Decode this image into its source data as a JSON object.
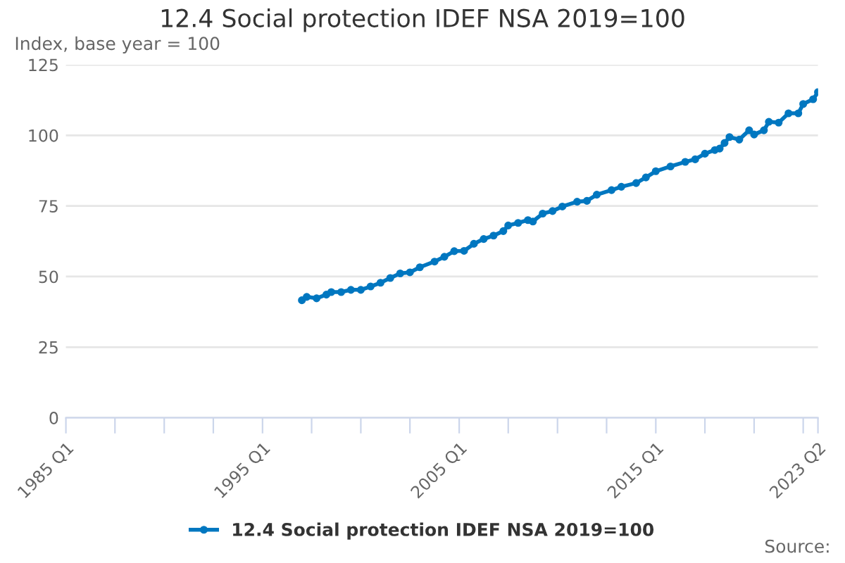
{
  "chart_data": {
    "type": "line",
    "title": "12.4 Social protection IDEF NSA 2019=100",
    "ylabel": "Index, base year = 100",
    "annotations": [
      "Source:"
    ],
    "series": [
      {
        "name": "12.4 Social protection IDEF NSA 2019=100",
        "color": "#0077c0",
        "x": [
          "1997-01",
          "1997-04",
          "1997-10",
          "1998-04",
          "1998-07",
          "1999-01",
          "1999-07",
          "2000-01",
          "2000-07",
          "2001-01",
          "2001-07",
          "2002-01",
          "2002-07",
          "2003-01",
          "2003-10",
          "2004-04",
          "2004-10",
          "2005-04",
          "2005-10",
          "2006-04",
          "2006-10",
          "2007-04",
          "2007-07",
          "2008-01",
          "2008-07",
          "2008-10",
          "2009-04",
          "2009-10",
          "2010-04",
          "2011-01",
          "2011-07",
          "2012-01",
          "2012-10",
          "2013-04",
          "2014-01",
          "2014-07",
          "2015-01",
          "2015-10",
          "2016-07",
          "2017-01",
          "2017-07",
          "2018-01",
          "2018-04",
          "2018-07",
          "2018-10",
          "2019-04",
          "2019-10",
          "2020-01",
          "2020-07",
          "2020-10",
          "2021-04",
          "2021-10",
          "2022-04",
          "2022-07",
          "2023-01",
          "2023-04"
        ],
        "values": [
          41.6,
          42.8,
          42.3,
          43.6,
          44.5,
          44.5,
          45.3,
          45.3,
          46.5,
          47.8,
          49.5,
          51.1,
          51.5,
          53.3,
          55.3,
          57,
          59,
          59.1,
          61.6,
          63.3,
          64.5,
          66.1,
          68.1,
          69,
          70,
          69.5,
          72.3,
          73.2,
          74.8,
          76.5,
          76.8,
          79,
          80.6,
          81.8,
          83.1,
          85.1,
          87.3,
          89,
          90.6,
          91.5,
          93.5,
          94.8,
          95.3,
          97.3,
          99.4,
          98.5,
          101.8,
          100.3,
          101.8,
          104.8,
          104.5,
          107.8,
          107.8,
          111.1,
          112.8,
          115.3
        ]
      }
    ],
    "xlim": [
      "1985-01",
      "2023-04"
    ],
    "ylim": [
      0,
      125
    ],
    "xticks": [
      {
        "value": "1985-01",
        "label": "1985 Q1"
      },
      {
        "value": "1987-07",
        "label": null
      },
      {
        "value": "1990-01",
        "label": null
      },
      {
        "value": "1992-07",
        "label": null
      },
      {
        "value": "1995-01",
        "label": "1995 Q1"
      },
      {
        "value": "1997-07",
        "label": null
      },
      {
        "value": "2000-01",
        "label": null
      },
      {
        "value": "2002-07",
        "label": null
      },
      {
        "value": "2005-01",
        "label": "2005 Q1"
      },
      {
        "value": "2007-07",
        "label": null
      },
      {
        "value": "2010-01",
        "label": null
      },
      {
        "value": "2012-07",
        "label": null
      },
      {
        "value": "2015-01",
        "label": "2015 Q1"
      },
      {
        "value": "2017-07",
        "label": null
      },
      {
        "value": "2020-01",
        "label": null
      },
      {
        "value": "2022-07",
        "label": null
      },
      {
        "value": "2023-04",
        "label": "2023 Q2"
      }
    ],
    "yticks": [
      0,
      25,
      50,
      75,
      100,
      125
    ],
    "grid": "y",
    "legend": "bottom",
    "marker": "circle",
    "line_style": "solid"
  }
}
